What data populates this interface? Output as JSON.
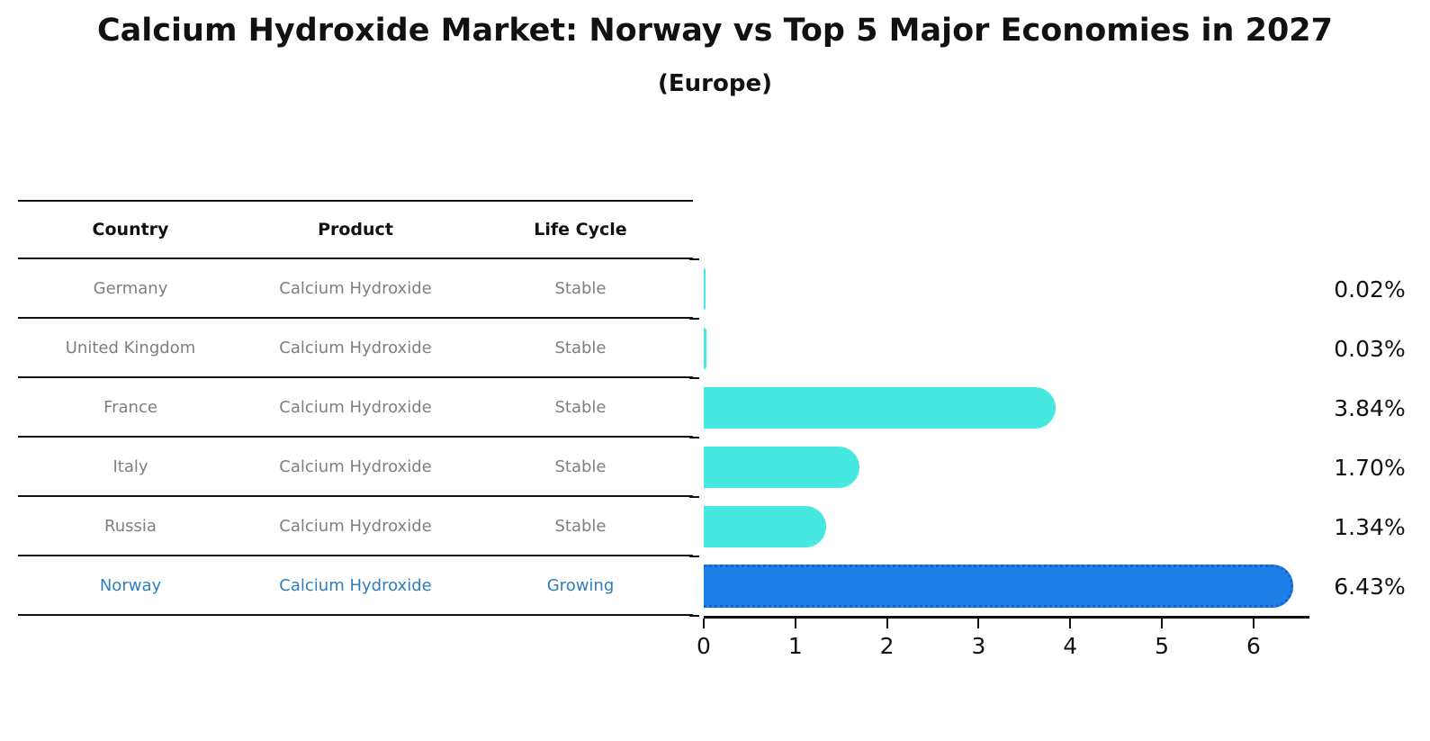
{
  "title": "Calcium Hydroxide Market: Norway vs Top 5 Major Economies in 2027",
  "subtitle": "(Europe)",
  "table": {
    "headers": [
      "Country",
      "Product",
      "Life Cycle"
    ],
    "rows": [
      {
        "country": "Germany",
        "product": "Calcium Hydroxide",
        "life_cycle": "Stable",
        "highlight": false
      },
      {
        "country": "United Kingdom",
        "product": "Calcium Hydroxide",
        "life_cycle": "Stable",
        "highlight": false
      },
      {
        "country": "France",
        "product": "Calcium Hydroxide",
        "life_cycle": "Stable",
        "highlight": false
      },
      {
        "country": "Italy",
        "product": "Calcium Hydroxide",
        "life_cycle": "Stable",
        "highlight": false
      },
      {
        "country": "Russia",
        "product": "Calcium Hydroxide",
        "life_cycle": "Stable",
        "highlight": false
      },
      {
        "country": "Norway",
        "product": "Calcium Hydroxide",
        "life_cycle": "Growing",
        "highlight": true
      }
    ]
  },
  "chart_data": {
    "type": "bar",
    "orientation": "horizontal",
    "title": "Calcium Hydroxide Market: Norway vs Top 5 Major Economies in 2027 (Europe)",
    "categories": [
      "Germany",
      "United Kingdom",
      "France",
      "Italy",
      "Russia",
      "Norway"
    ],
    "values": [
      0.02,
      0.03,
      3.84,
      1.7,
      1.34,
      6.43
    ],
    "value_labels": [
      "0.02%",
      "0.03%",
      "3.84%",
      "1.70%",
      "1.34%",
      "6.43%"
    ],
    "xticks": [
      0,
      1,
      2,
      3,
      4,
      5,
      6
    ],
    "xlim": [
      0,
      6.61
    ],
    "grid": false,
    "legend": false,
    "bar_color": "#47e8df",
    "highlight_color": "#1e7fe8",
    "highlight_border_color": "#1565d0",
    "highlight_index": 5,
    "highlight_text_color": "#2e7ebc"
  }
}
